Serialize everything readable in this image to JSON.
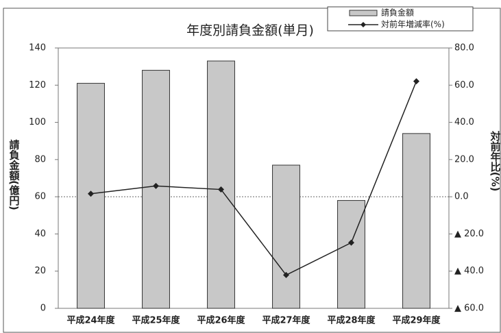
{
  "chart_data": {
    "type": "bar",
    "title": "年度別請負金額(単月)",
    "y_label": "請負金額(億円)",
    "y2_label": "対前年比(%)",
    "categories": [
      "平成24年度",
      "平成25年度",
      "平成26年度",
      "平成27年度",
      "平成28年度",
      "平成29年度"
    ],
    "series": [
      {
        "name": "請負金額",
        "type": "bar",
        "color": "#c8c8c8",
        "values": [
          121,
          128,
          133,
          77,
          58,
          94
        ]
      },
      {
        "name": "対前年増減率(%)",
        "type": "line",
        "axis": "y2",
        "color": "#222222",
        "values": [
          1.6,
          5.8,
          3.9,
          -42.1,
          -24.7,
          62.1
        ]
      }
    ],
    "ylim": [
      0,
      140
    ],
    "yticks": [
      0,
      20,
      40,
      60,
      80,
      100,
      120,
      140
    ],
    "y2lim": [
      -60,
      80
    ],
    "y2ticks": [
      {
        "value": 80,
        "label": "80.0"
      },
      {
        "value": 60,
        "label": "60.0"
      },
      {
        "value": 40,
        "label": "40.0"
      },
      {
        "value": 20,
        "label": "20.0"
      },
      {
        "value": 0,
        "label": "0.0"
      },
      {
        "value": -20,
        "label": "▲ 20.0"
      },
      {
        "value": -40,
        "label": "▲ 40.0"
      },
      {
        "value": -60,
        "label": "▲ 60.0"
      }
    ]
  }
}
